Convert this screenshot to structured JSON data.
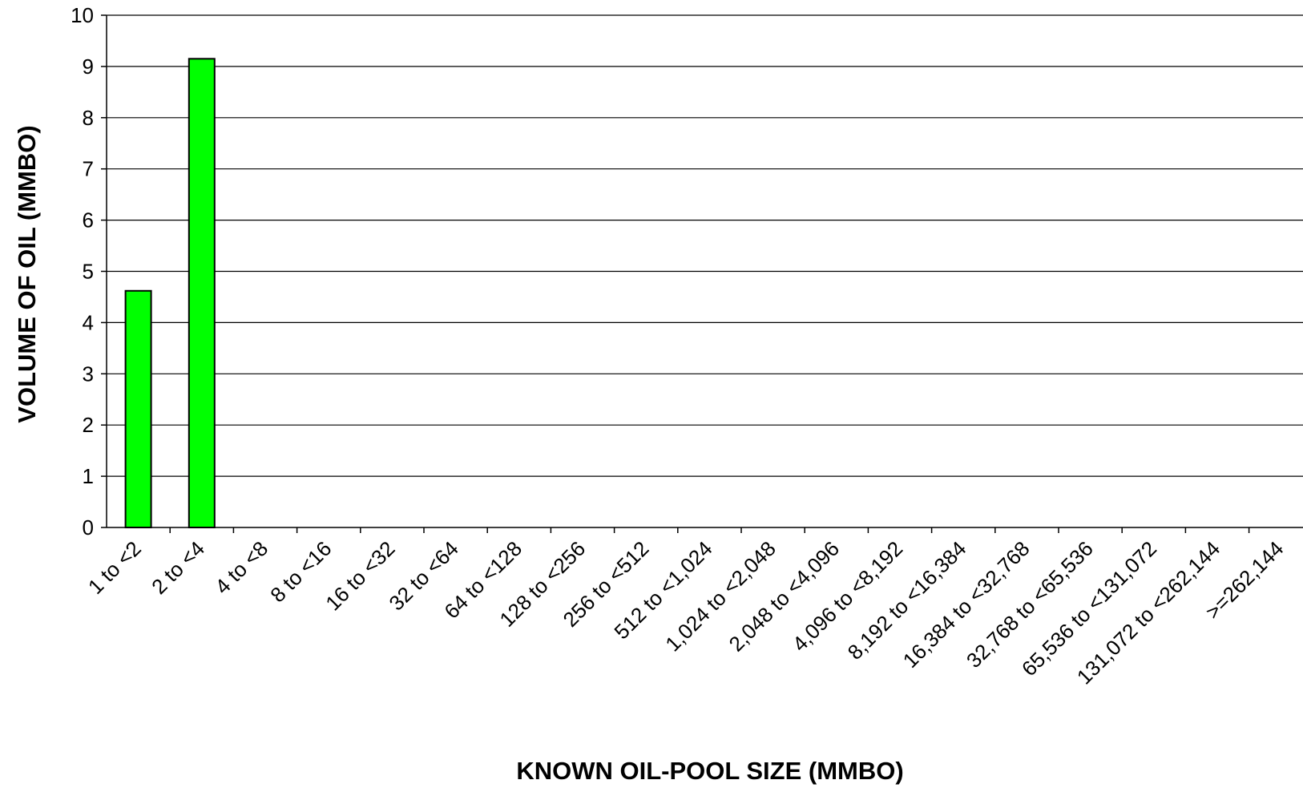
{
  "chart_data": {
    "type": "bar",
    "title": "",
    "xlabel": "KNOWN OIL-POOL SIZE (MMBO)",
    "ylabel": "VOLUME OF OIL (MMBO)",
    "ylim": [
      0,
      10
    ],
    "yticks": [
      "0",
      "1",
      "2",
      "3",
      "4",
      "5",
      "6",
      "7",
      "8",
      "9",
      "10"
    ],
    "grid": true,
    "legend": "none",
    "bar_color": "#00ff00",
    "categories": [
      "1 to <2",
      "2 to <4",
      "4 to <8",
      "8 to <16",
      "16 to <32",
      "32 to <64",
      "64 to <128",
      "128 to <256",
      "256 to <512",
      "512 to <1,024",
      "1,024 to <2,048",
      "2,048 to <4,096",
      "4,096 to <8,192",
      "8,192 to <16,384",
      "16,384 to <32,768",
      "32,768 to <65,536",
      "65,536 to <131,072",
      "131,072 to <262,144",
      ">=262,144"
    ],
    "values": [
      4.62,
      9.15,
      0,
      0,
      0,
      0,
      0,
      0,
      0,
      0,
      0,
      0,
      0,
      0,
      0,
      0,
      0,
      0,
      0
    ]
  }
}
